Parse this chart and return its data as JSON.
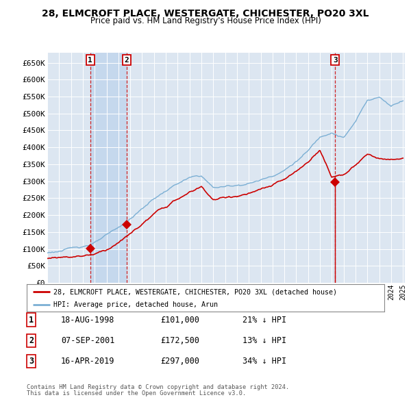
{
  "title": "28, ELMCROFT PLACE, WESTERGATE, CHICHESTER, PO20 3XL",
  "subtitle": "Price paid vs. HM Land Registry's House Price Index (HPI)",
  "ylim": [
    0,
    680000
  ],
  "yticks": [
    0,
    50000,
    100000,
    150000,
    200000,
    250000,
    300000,
    350000,
    400000,
    450000,
    500000,
    550000,
    600000,
    650000
  ],
  "ytick_labels": [
    "£0",
    "£50K",
    "£100K",
    "£150K",
    "£200K",
    "£250K",
    "£300K",
    "£350K",
    "£400K",
    "£450K",
    "£500K",
    "£550K",
    "£600K",
    "£650K"
  ],
  "legend_line1": "28, ELMCROFT PLACE, WESTERGATE, CHICHESTER, PO20 3XL (detached house)",
  "legend_line2": "HPI: Average price, detached house, Arun",
  "sale1_date": "18-AUG-1998",
  "sale1_price": 101000,
  "sale1_hpi": "21% ↓ HPI",
  "sale2_date": "07-SEP-2001",
  "sale2_price": 172500,
  "sale2_hpi": "13% ↓ HPI",
  "sale3_date": "16-APR-2019",
  "sale3_price": 297000,
  "sale3_hpi": "34% ↓ HPI",
  "footer1": "Contains HM Land Registry data © Crown copyright and database right 2024.",
  "footer2": "This data is licensed under the Open Government Licence v3.0.",
  "price_color": "#cc0000",
  "hpi_color": "#7bafd4",
  "background_color": "#dce6f1",
  "shade_color": "#c5d8ed",
  "sale_marker_color": "#cc0000",
  "vline_color": "#cc0000",
  "grid_color": "#ffffff",
  "hpi_anchors_year": [
    1995,
    1996,
    1997,
    1998,
    1999,
    2000,
    2001,
    2002,
    2003,
    2004,
    2005,
    2006,
    2007,
    2008,
    2009,
    2010,
    2011,
    2012,
    2013,
    2014,
    2015,
    2016,
    2017,
    2018,
    2019,
    2020,
    2021,
    2022,
    2023,
    2024,
    2025
  ],
  "hpi_anchors_val": [
    88000,
    94000,
    100000,
    108000,
    120000,
    138000,
    158000,
    185000,
    215000,
    245000,
    268000,
    290000,
    305000,
    310000,
    275000,
    278000,
    283000,
    290000,
    300000,
    315000,
    333000,
    360000,
    390000,
    430000,
    450000,
    435000,
    480000,
    545000,
    555000,
    530000,
    550000
  ],
  "pp_anchors_year": [
    1995,
    1996,
    1997,
    1998,
    1999,
    2000,
    2001,
    2002,
    2003,
    2004,
    2005,
    2006,
    2007,
    2008,
    2009,
    2010,
    2011,
    2012,
    2013,
    2014,
    2015,
    2016,
    2017,
    2018,
    2019,
    2020,
    2021,
    2022,
    2023,
    2024,
    2025
  ],
  "pp_anchors_val": [
    72000,
    76000,
    80000,
    84000,
    91000,
    105000,
    128000,
    152000,
    180000,
    208000,
    228000,
    250000,
    268000,
    285000,
    248000,
    252000,
    258000,
    265000,
    273000,
    283000,
    298000,
    318000,
    345000,
    385000,
    305000,
    315000,
    340000,
    370000,
    358000,
    350000,
    355000
  ],
  "noise_seed": 123
}
